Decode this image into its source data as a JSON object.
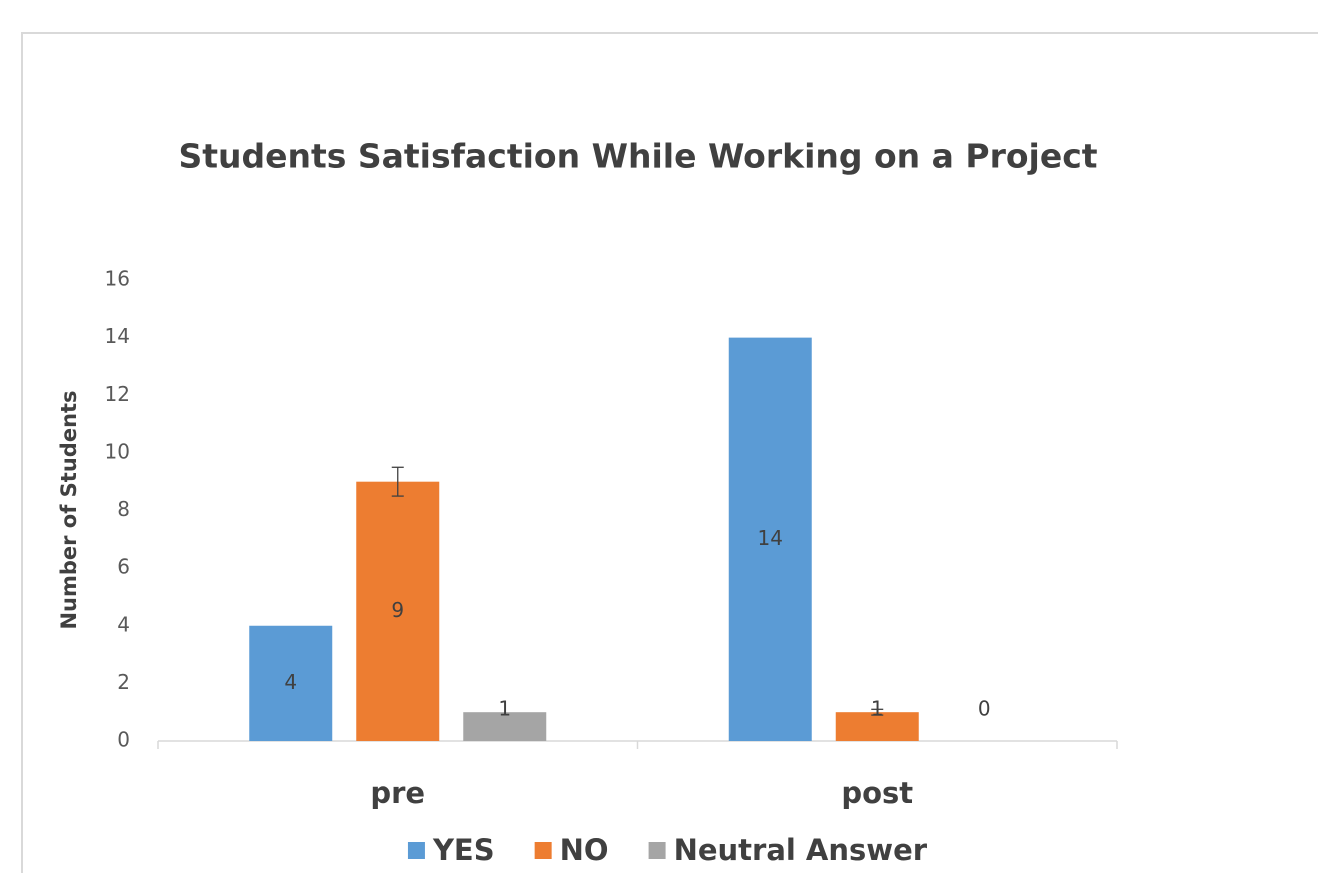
{
  "chart_data": {
    "type": "bar",
    "title": "Students Satisfaction While Working on a Project",
    "y_label": "Number of Students",
    "categories": [
      "pre",
      "post"
    ],
    "series": [
      {
        "name": "YES",
        "color": "#5b9bd5",
        "values": [
          4,
          14
        ]
      },
      {
        "name": "NO",
        "color": "#ed7d31",
        "values": [
          9,
          1
        ],
        "errors": [
          0.5,
          0.1
        ]
      },
      {
        "name": "Neutral Answer",
        "color": "#a5a5a5",
        "values": [
          1,
          0
        ]
      }
    ],
    "ylim": [
      0,
      16
    ],
    "yticks": [
      0,
      2,
      4,
      6,
      8,
      10,
      12,
      14,
      16
    ],
    "grid": false,
    "legend": "bottom"
  }
}
